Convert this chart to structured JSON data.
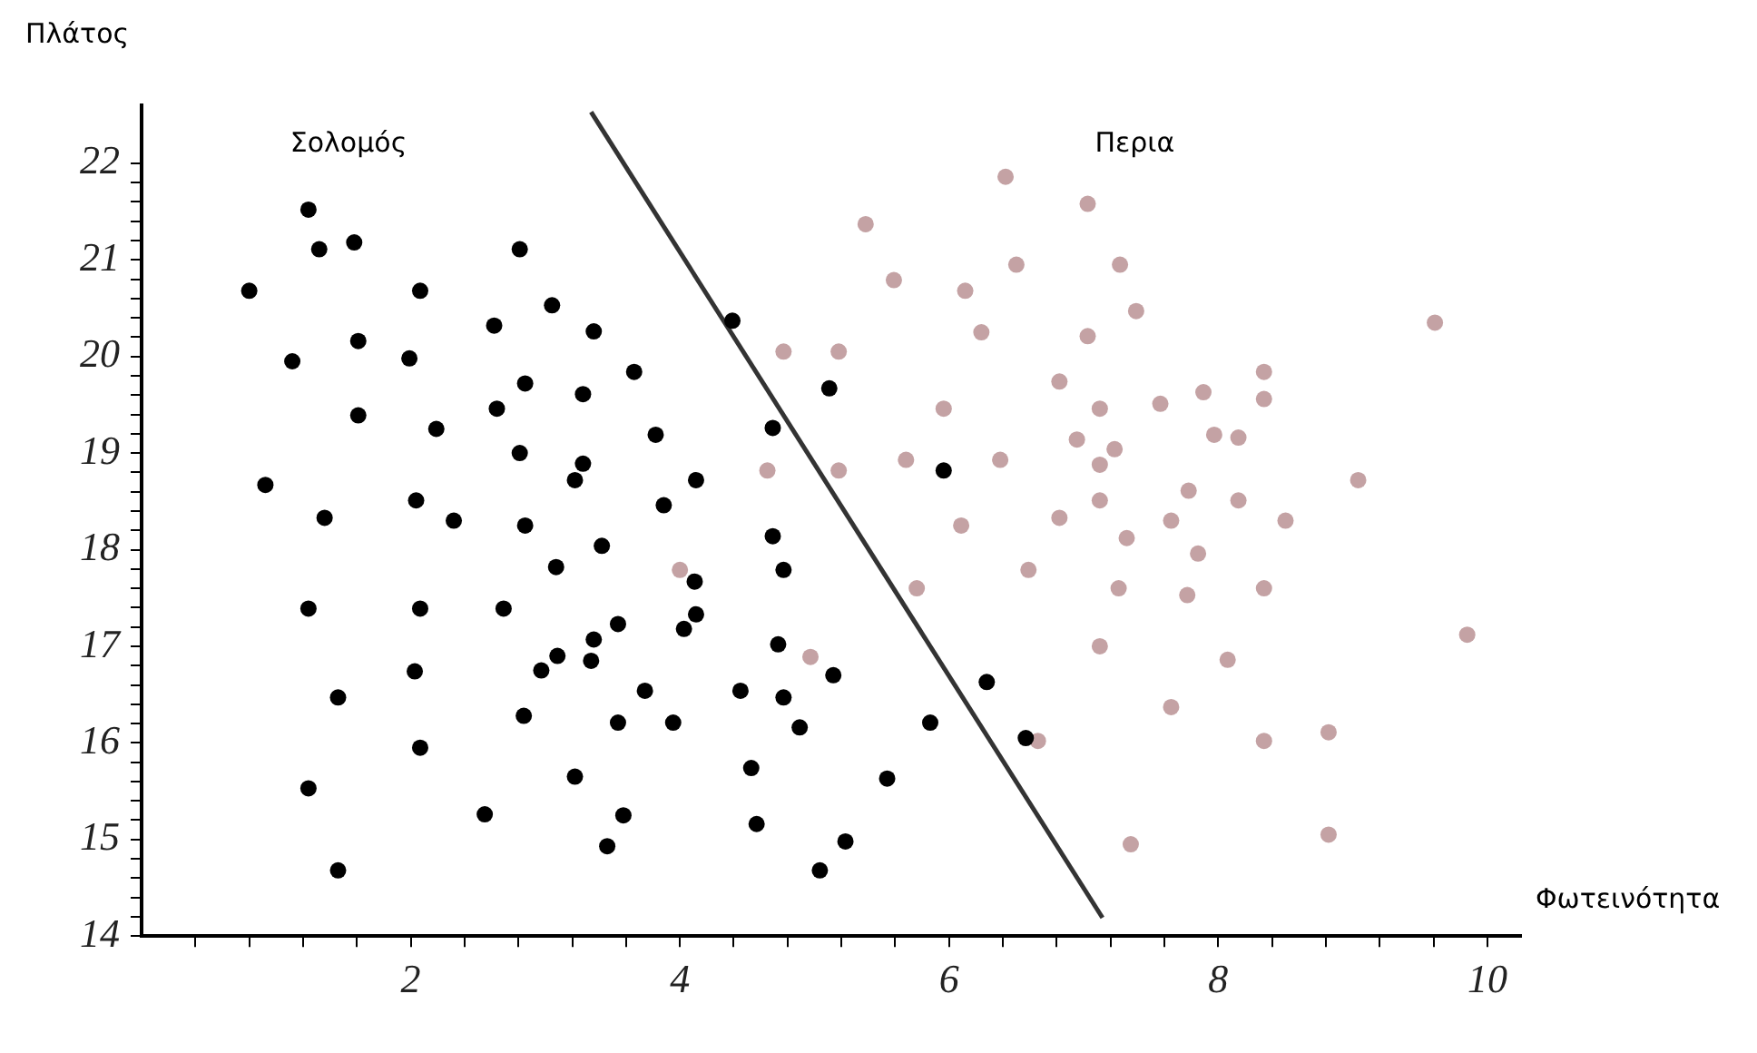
{
  "chart_data": {
    "type": "scatter",
    "xlabel": "Φωτεινότητα",
    "ylabel": "Πλάτος",
    "xlim": [
      0,
      10.25
    ],
    "ylim": [
      14,
      22.6
    ],
    "xticks": [
      {
        "value": 0.4,
        "label": null
      },
      {
        "value": 0.8,
        "label": null
      },
      {
        "value": 1.2,
        "label": null
      },
      {
        "value": 1.6,
        "label": null
      },
      2,
      {
        "value": 2.4,
        "label": null
      },
      {
        "value": 2.8,
        "label": null
      },
      {
        "value": 3.2,
        "label": null
      },
      {
        "value": 3.6,
        "label": null
      },
      4,
      {
        "value": 4.4,
        "label": null
      },
      {
        "value": 4.8,
        "label": null
      },
      {
        "value": 5.2,
        "label": null
      },
      {
        "value": 5.6,
        "label": null
      },
      6,
      {
        "value": 6.4,
        "label": null
      },
      {
        "value": 6.8,
        "label": null
      },
      {
        "value": 7.2,
        "label": null
      },
      {
        "value": 7.6,
        "label": null
      },
      8,
      {
        "value": 8.4,
        "label": null
      },
      {
        "value": 8.8,
        "label": null
      },
      {
        "value": 9.2,
        "label": null
      },
      {
        "value": 9.6,
        "label": null
      },
      10
    ],
    "yticks": [
      14,
      {
        "value": 14.2,
        "label": null
      },
      {
        "value": 14.4,
        "label": null
      },
      {
        "value": 14.6,
        "label": null
      },
      {
        "value": 14.8,
        "label": null
      },
      15,
      {
        "value": 15.2,
        "label": null
      },
      {
        "value": 15.4,
        "label": null
      },
      {
        "value": 15.6,
        "label": null
      },
      {
        "value": 15.8,
        "label": null
      },
      16,
      {
        "value": 16.2,
        "label": null
      },
      {
        "value": 16.4,
        "label": null
      },
      {
        "value": 16.6,
        "label": null
      },
      {
        "value": 16.8,
        "label": null
      },
      17,
      {
        "value": 17.2,
        "label": null
      },
      {
        "value": 17.4,
        "label": null
      },
      {
        "value": 17.6,
        "label": null
      },
      {
        "value": 17.8,
        "label": null
      },
      18,
      {
        "value": 18.2,
        "label": null
      },
      {
        "value": 18.4,
        "label": null
      },
      {
        "value": 18.6,
        "label": null
      },
      {
        "value": 18.8,
        "label": null
      },
      19,
      {
        "value": 19.2,
        "label": null
      },
      {
        "value": 19.4,
        "label": null
      },
      {
        "value": 19.6,
        "label": null
      },
      {
        "value": 19.8,
        "label": null
      },
      20,
      {
        "value": 20.2,
        "label": null
      },
      {
        "value": 20.4,
        "label": null
      },
      {
        "value": 20.6,
        "label": null
      },
      {
        "value": 20.8,
        "label": null
      },
      21,
      {
        "value": 21.2,
        "label": null
      },
      {
        "value": 21.4,
        "label": null
      },
      {
        "value": 21.6,
        "label": null
      },
      {
        "value": 21.8,
        "label": null
      },
      22
    ],
    "marker": "circle",
    "series": [
      {
        "name": "Σολομός",
        "color": "#000000",
        "x": [
          1.24,
          1.32,
          1.58,
          2.81,
          0.8,
          2.07,
          3.05,
          2.62,
          1.61,
          1.12,
          1.99,
          2.85,
          1.61,
          2.64,
          2.19,
          2.81,
          0.92,
          2.04,
          1.36,
          2.32,
          2.85,
          3.22,
          3.36,
          3.66,
          3.28,
          3.82,
          4.69,
          4.39,
          5.11,
          3.28,
          4.12,
          3.88,
          4.69,
          3.42,
          3.08,
          4.77,
          5.96,
          4.11,
          3.54,
          4.12,
          4.03,
          3.36,
          3.09,
          2.97,
          3.34,
          4.73,
          5.14,
          3.74,
          4.45,
          4.77,
          6.28,
          2.84,
          3.54,
          3.95,
          4.89,
          5.86,
          6.57,
          3.22,
          4.53,
          5.54,
          3.58,
          4.57,
          5.23,
          3.46,
          5.04,
          1.24,
          2.07,
          2.69,
          2.03,
          1.46,
          2.07,
          1.24,
          2.55,
          1.46
        ],
        "values": [
          21.52,
          21.11,
          21.18,
          21.11,
          20.68,
          20.68,
          20.53,
          20.32,
          20.16,
          19.95,
          19.98,
          19.72,
          19.39,
          19.46,
          19.25,
          19.0,
          18.67,
          18.51,
          18.33,
          18.3,
          18.25,
          18.72,
          20.26,
          19.84,
          19.61,
          19.19,
          19.26,
          20.37,
          19.67,
          18.89,
          18.72,
          18.46,
          18.14,
          18.04,
          17.82,
          17.79,
          18.82,
          17.67,
          17.23,
          17.33,
          17.18,
          17.07,
          16.9,
          16.75,
          16.85,
          17.02,
          16.7,
          16.54,
          16.54,
          16.47,
          16.63,
          16.28,
          16.21,
          16.21,
          16.16,
          16.21,
          16.05,
          15.65,
          15.74,
          15.63,
          15.25,
          15.16,
          14.98,
          14.93,
          14.68,
          17.39,
          17.39,
          17.39,
          16.74,
          16.47,
          15.95,
          15.53,
          15.26,
          14.68
        ]
      },
      {
        "name": "Περια",
        "color": "#c4a2a4",
        "x": [
          6.42,
          7.03,
          5.38,
          5.59,
          6.12,
          6.5,
          7.27,
          6.24,
          7.03,
          4.77,
          5.18,
          6.82,
          7.12,
          5.96,
          6.95,
          7.23,
          7.12,
          5.68,
          6.38,
          4.65,
          5.18,
          7.12,
          6.82,
          6.09,
          6.59,
          4.0,
          5.76,
          7.26,
          7.12,
          4.97,
          6.66,
          7.39,
          9.61,
          8.34,
          7.89,
          8.34,
          7.57,
          7.97,
          8.15,
          9.04,
          7.78,
          8.15,
          7.65,
          8.5,
          7.32,
          7.85,
          7.77,
          8.34,
          9.85,
          8.07,
          7.65,
          8.34,
          8.82,
          7.35,
          8.82
        ],
        "values": [
          21.86,
          21.58,
          21.37,
          20.79,
          20.68,
          20.95,
          20.95,
          20.25,
          20.21,
          20.05,
          20.05,
          19.74,
          19.46,
          19.46,
          19.14,
          19.04,
          18.88,
          18.93,
          18.93,
          18.82,
          18.82,
          18.51,
          18.33,
          18.25,
          17.79,
          17.79,
          17.6,
          17.6,
          17.0,
          16.89,
          16.02,
          20.47,
          20.35,
          19.84,
          19.63,
          19.56,
          19.51,
          19.19,
          19.16,
          18.72,
          18.61,
          18.51,
          18.3,
          18.3,
          18.12,
          17.96,
          17.53,
          17.6,
          17.12,
          16.86,
          16.37,
          16.02,
          16.11,
          14.95,
          15.05
        ]
      },
      {
        "type": "line",
        "marker": "none",
        "color": "#333333",
        "x": [
          3.34,
          7.14
        ],
        "values": [
          22.53,
          14.19
        ]
      }
    ]
  }
}
